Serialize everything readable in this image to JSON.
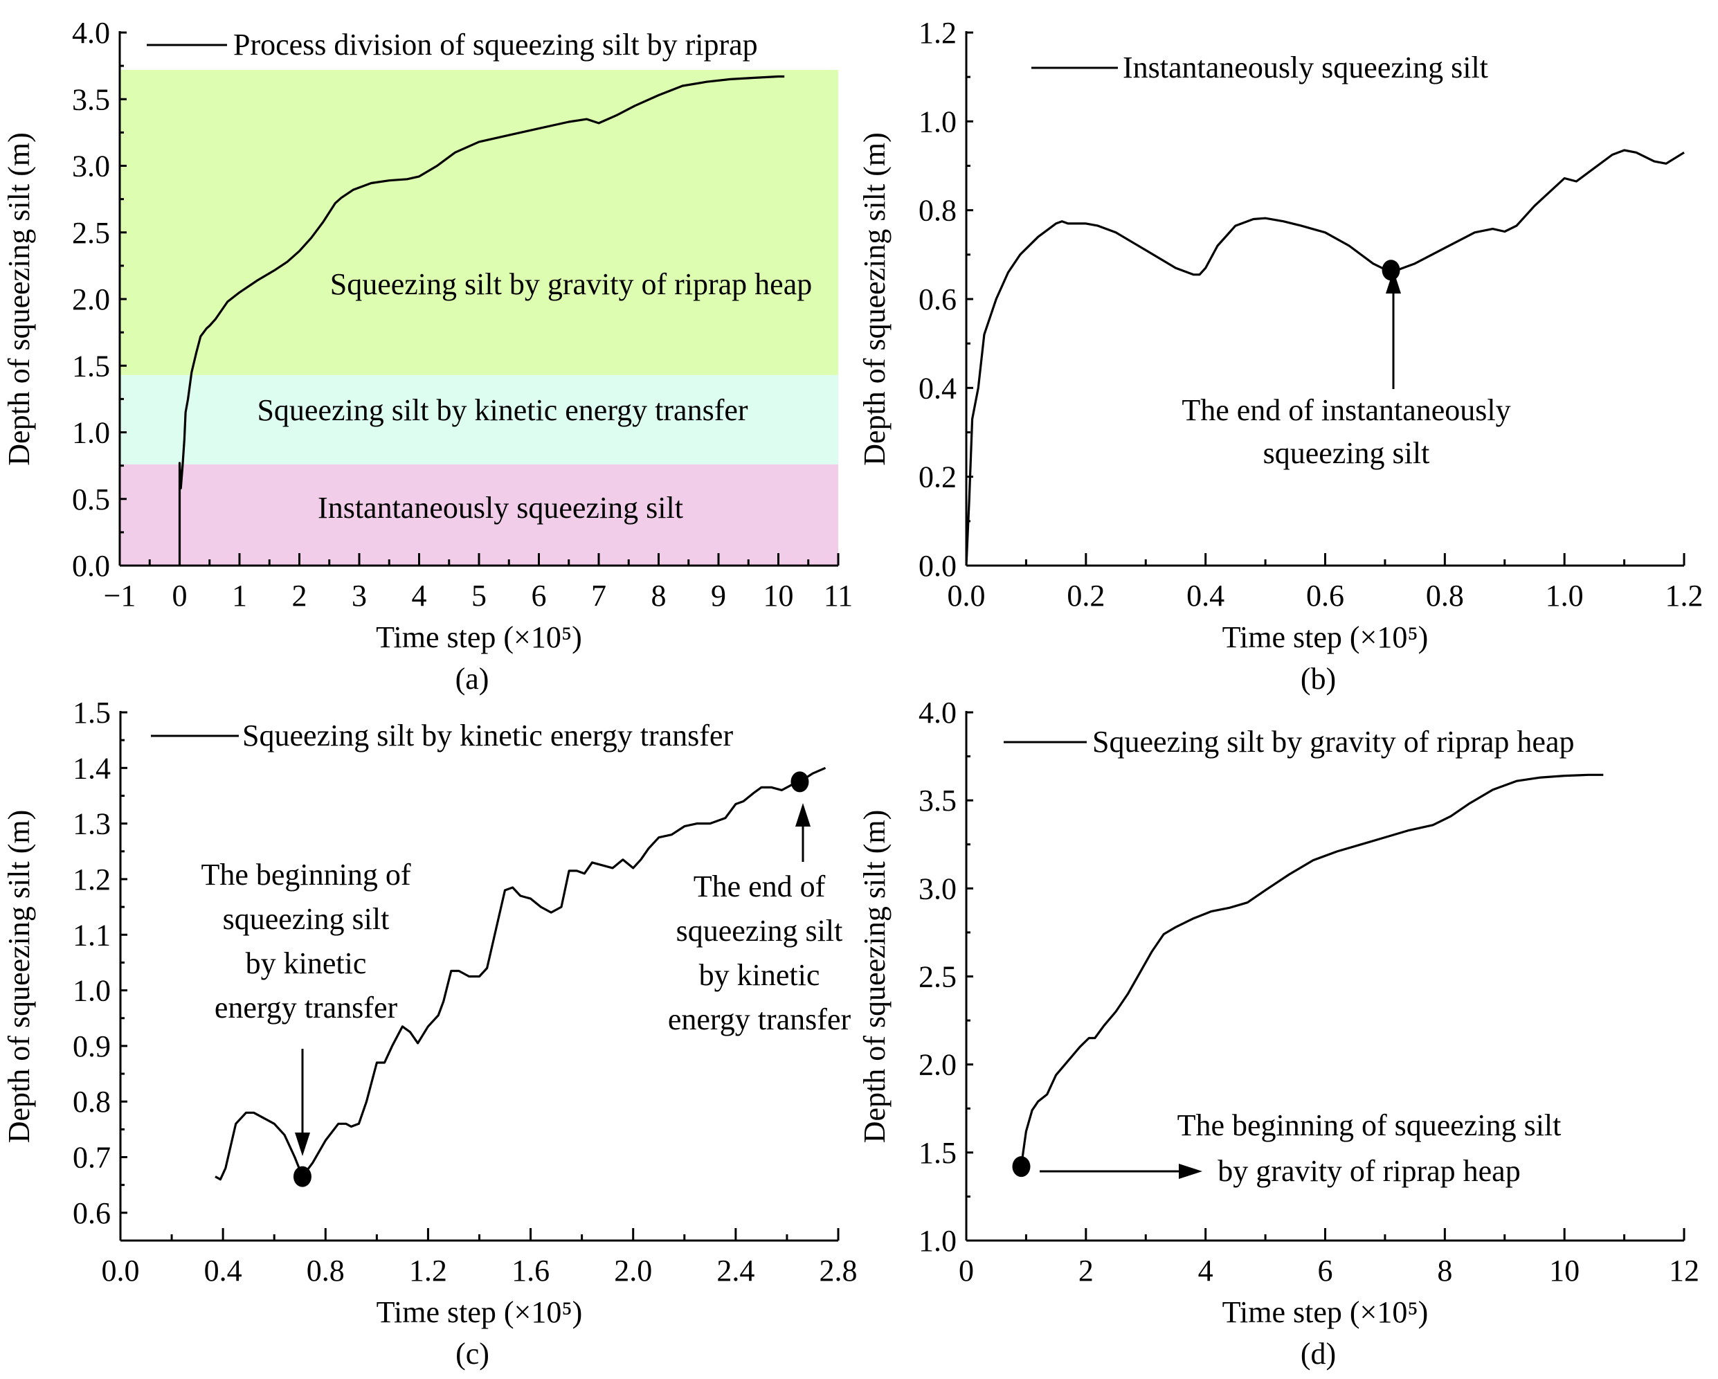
{
  "chart_data": [
    {
      "id": "a",
      "type": "line",
      "panel_label": "(a)",
      "xlabel": "Time step (×10⁵)",
      "ylabel": "Depth of squeezing silt (m)",
      "xlim": [
        -1,
        11
      ],
      "ylim": [
        0,
        4.0
      ],
      "xticks": [
        -1,
        0,
        1,
        2,
        3,
        4,
        5,
        6,
        7,
        8,
        9,
        10,
        11
      ],
      "xtick_labels": [
        "−1",
        "0",
        "1",
        "2",
        "3",
        "4",
        "5",
        "6",
        "7",
        "8",
        "9",
        "10",
        "11"
      ],
      "yticks": [
        0,
        0.5,
        1.0,
        1.5,
        2.0,
        2.5,
        3.0,
        3.5,
        4.0
      ],
      "ytick_labels": [
        "0.0",
        "0.5",
        "1.0",
        "1.5",
        "2.0",
        "2.5",
        "3.0",
        "3.5",
        "4.0"
      ],
      "legend": {
        "label": "Process division of squeezing silt by riprap",
        "placement": "top-left"
      },
      "bands": [
        {
          "label": "Instantaneously squeezing silt",
          "y0": 0,
          "y1": 0.76,
          "color": "#f1cdea"
        },
        {
          "label": "Squeezing silt by kinetic energy transfer",
          "y0": 0.76,
          "y1": 1.43,
          "color": "#dcfdf0"
        },
        {
          "label": "Squeezing silt by gravity of riprap heap",
          "y0": 1.43,
          "y1": 3.72,
          "color": "#ddfdb0"
        }
      ],
      "series": [
        {
          "name": "Process division of squeezing silt by riprap",
          "color": "#000000",
          "x": [
            0.0,
            0.0,
            0.02,
            0.05,
            0.08,
            0.1,
            0.14,
            0.2,
            0.28,
            0.35,
            0.45,
            0.5,
            0.6,
            0.8,
            1.0,
            1.3,
            1.6,
            1.8,
            2.0,
            2.2,
            2.4,
            2.6,
            2.7,
            2.9,
            3.2,
            3.5,
            3.8,
            4.0,
            4.3,
            4.6,
            5.0,
            5.5,
            6.0,
            6.5,
            6.8,
            7.0,
            7.3,
            7.6,
            8.0,
            8.4,
            8.8,
            9.2,
            9.6,
            10.0,
            10.1
          ],
          "y": [
            0.0,
            0.77,
            0.58,
            0.75,
            0.95,
            1.15,
            1.25,
            1.45,
            1.6,
            1.72,
            1.78,
            1.8,
            1.85,
            1.98,
            2.05,
            2.14,
            2.22,
            2.28,
            2.36,
            2.46,
            2.58,
            2.72,
            2.76,
            2.82,
            2.87,
            2.89,
            2.9,
            2.92,
            3.0,
            3.1,
            3.18,
            3.23,
            3.28,
            3.33,
            3.35,
            3.32,
            3.38,
            3.45,
            3.53,
            3.6,
            3.63,
            3.65,
            3.66,
            3.67,
            3.67
          ]
        }
      ]
    },
    {
      "id": "b",
      "type": "line",
      "panel_label": "(b)",
      "xlabel": "Time step (×10⁵)",
      "ylabel": "Depth of squeezing silt (m)",
      "xlim": [
        0,
        1.2
      ],
      "ylim": [
        0,
        1.2
      ],
      "xticks": [
        0,
        0.2,
        0.4,
        0.6,
        0.8,
        1.0,
        1.2
      ],
      "xtick_labels": [
        "0.0",
        "0.2",
        "0.4",
        "0.6",
        "0.8",
        "1.0",
        "1.2"
      ],
      "yticks": [
        0,
        0.2,
        0.4,
        0.6,
        0.8,
        1.0,
        1.2
      ],
      "ytick_labels": [
        "0.0",
        "0.2",
        "0.4",
        "0.6",
        "0.8",
        "1.0",
        "1.2"
      ],
      "legend": {
        "label": "Instantaneously squeezing silt",
        "placement": "top-left"
      },
      "annotations": [
        {
          "text_lines": [
            "The end of instantaneously",
            "squeezing silt"
          ],
          "point": [
            0.71,
            0.665
          ],
          "arrow": "up"
        }
      ],
      "series": [
        {
          "name": "Instantaneously squeezing silt",
          "color": "#000000",
          "x": [
            0.0,
            0.005,
            0.01,
            0.02,
            0.03,
            0.05,
            0.07,
            0.09,
            0.12,
            0.15,
            0.16,
            0.17,
            0.2,
            0.22,
            0.25,
            0.3,
            0.35,
            0.38,
            0.39,
            0.4,
            0.42,
            0.45,
            0.48,
            0.5,
            0.53,
            0.56,
            0.6,
            0.64,
            0.68,
            0.71,
            0.75,
            0.8,
            0.85,
            0.88,
            0.9,
            0.92,
            0.95,
            1.0,
            1.02,
            1.05,
            1.08,
            1.1,
            1.12,
            1.15,
            1.17,
            1.2
          ],
          "y": [
            0.0,
            0.15,
            0.33,
            0.4,
            0.52,
            0.6,
            0.66,
            0.7,
            0.74,
            0.77,
            0.775,
            0.77,
            0.77,
            0.765,
            0.75,
            0.71,
            0.67,
            0.655,
            0.655,
            0.67,
            0.72,
            0.765,
            0.78,
            0.782,
            0.775,
            0.765,
            0.75,
            0.72,
            0.68,
            0.66,
            0.68,
            0.715,
            0.75,
            0.758,
            0.752,
            0.765,
            0.81,
            0.872,
            0.865,
            0.895,
            0.925,
            0.935,
            0.93,
            0.91,
            0.905,
            0.93
          ]
        }
      ],
      "markers": [
        {
          "x": 0.71,
          "y": 0.665
        }
      ]
    },
    {
      "id": "c",
      "type": "line",
      "panel_label": "(c)",
      "xlabel": "Time step (×10⁵)",
      "ylabel": "Depth of squeezing silt (m)",
      "xlim": [
        0,
        2.8
      ],
      "ylim": [
        0.55,
        1.5
      ],
      "xticks": [
        0,
        0.4,
        0.8,
        1.2,
        1.6,
        2.0,
        2.4,
        2.8
      ],
      "xtick_labels": [
        "0.0",
        "0.4",
        "0.8",
        "1.2",
        "1.6",
        "2.0",
        "2.4",
        "2.8"
      ],
      "yticks": [
        0.6,
        0.7,
        0.8,
        0.9,
        1.0,
        1.1,
        1.2,
        1.3,
        1.4,
        1.5
      ],
      "ytick_labels": [
        "0.6",
        "0.7",
        "0.8",
        "0.9",
        "1.0",
        "1.1",
        "1.2",
        "1.3",
        "1.4",
        "1.5"
      ],
      "legend": {
        "label": "Squeezing silt by kinetic energy transfer",
        "placement": "top-left"
      },
      "annotations": [
        {
          "text_lines": [
            "The beginning of",
            "squeezing silt",
            "by kinetic",
            "energy transfer"
          ],
          "point": [
            0.71,
            0.665
          ],
          "arrow": "down"
        },
        {
          "text_lines": [
            "The end of",
            "squeezing silt",
            "by kinetic",
            "energy transfer"
          ],
          "point": [
            2.65,
            1.375
          ],
          "arrow": "up"
        }
      ],
      "series": [
        {
          "name": "Squeezing silt by kinetic energy transfer",
          "color": "#000000",
          "x": [
            0.37,
            0.39,
            0.41,
            0.45,
            0.49,
            0.52,
            0.56,
            0.6,
            0.64,
            0.68,
            0.71,
            0.75,
            0.8,
            0.85,
            0.88,
            0.9,
            0.93,
            0.96,
            1.0,
            1.03,
            1.06,
            1.1,
            1.13,
            1.16,
            1.2,
            1.24,
            1.26,
            1.29,
            1.32,
            1.36,
            1.4,
            1.43,
            1.46,
            1.5,
            1.53,
            1.56,
            1.6,
            1.64,
            1.68,
            1.72,
            1.75,
            1.78,
            1.81,
            1.84,
            1.88,
            1.92,
            1.96,
            2.0,
            2.03,
            2.06,
            2.1,
            2.15,
            2.2,
            2.25,
            2.3,
            2.33,
            2.36,
            2.4,
            2.43,
            2.47,
            2.5,
            2.54,
            2.58,
            2.62,
            2.65,
            2.7,
            2.75
          ],
          "y": [
            0.665,
            0.66,
            0.68,
            0.76,
            0.78,
            0.78,
            0.77,
            0.76,
            0.74,
            0.7,
            0.665,
            0.69,
            0.73,
            0.76,
            0.76,
            0.755,
            0.76,
            0.8,
            0.87,
            0.87,
            0.9,
            0.935,
            0.925,
            0.905,
            0.935,
            0.955,
            0.98,
            1.035,
            1.035,
            1.025,
            1.025,
            1.04,
            1.1,
            1.18,
            1.185,
            1.17,
            1.165,
            1.15,
            1.14,
            1.15,
            1.215,
            1.215,
            1.21,
            1.23,
            1.225,
            1.22,
            1.235,
            1.22,
            1.235,
            1.255,
            1.275,
            1.28,
            1.295,
            1.3,
            1.3,
            1.305,
            1.31,
            1.335,
            1.34,
            1.355,
            1.365,
            1.365,
            1.36,
            1.37,
            1.375,
            1.39,
            1.4
          ]
        }
      ],
      "markers": [
        {
          "x": 0.71,
          "y": 0.665
        },
        {
          "x": 2.65,
          "y": 1.375
        }
      ]
    },
    {
      "id": "d",
      "type": "line",
      "panel_label": "(d)",
      "xlabel": "Time step (×10⁵)",
      "ylabel": "Depth of squeezing silt (m)",
      "xlim": [
        0,
        12
      ],
      "ylim": [
        1.0,
        4.0
      ],
      "xticks": [
        0,
        2,
        4,
        6,
        8,
        10,
        12
      ],
      "xtick_labels": [
        "0",
        "2",
        "4",
        "6",
        "8",
        "10",
        "12"
      ],
      "yticks": [
        1.0,
        1.5,
        2.0,
        2.5,
        3.0,
        3.5,
        4.0
      ],
      "ytick_labels": [
        "1.0",
        "1.5",
        "2.0",
        "2.5",
        "3.0",
        "3.5",
        "4.0"
      ],
      "legend": {
        "label": "Squeezing silt by gravity of riprap heap",
        "placement": "top-left"
      },
      "annotations": [
        {
          "text_lines": [
            "The beginning of squeezing silt",
            "by gravity of riprap heap"
          ],
          "point": [
            0.92,
            1.42
          ],
          "arrow": "right"
        }
      ],
      "series": [
        {
          "name": "Squeezing silt by gravity of riprap heap",
          "color": "#000000",
          "x": [
            0.92,
            0.95,
            1.0,
            1.1,
            1.2,
            1.35,
            1.5,
            1.7,
            1.9,
            2.05,
            2.15,
            2.3,
            2.5,
            2.7,
            2.9,
            3.1,
            3.3,
            3.5,
            3.8,
            4.1,
            4.4,
            4.7,
            5.0,
            5.4,
            5.8,
            6.2,
            6.6,
            7.0,
            7.4,
            7.8,
            8.1,
            8.4,
            8.8,
            9.2,
            9.6,
            10.0,
            10.4,
            10.65
          ],
          "y": [
            1.42,
            1.5,
            1.62,
            1.74,
            1.79,
            1.83,
            1.94,
            2.02,
            2.1,
            2.15,
            2.15,
            2.22,
            2.3,
            2.4,
            2.52,
            2.64,
            2.74,
            2.78,
            2.83,
            2.87,
            2.89,
            2.92,
            2.99,
            3.08,
            3.16,
            3.21,
            3.25,
            3.29,
            3.33,
            3.36,
            3.41,
            3.48,
            3.56,
            3.61,
            3.63,
            3.64,
            3.645,
            3.645
          ]
        }
      ],
      "markers": [
        {
          "x": 0.92,
          "y": 1.42
        }
      ]
    }
  ]
}
